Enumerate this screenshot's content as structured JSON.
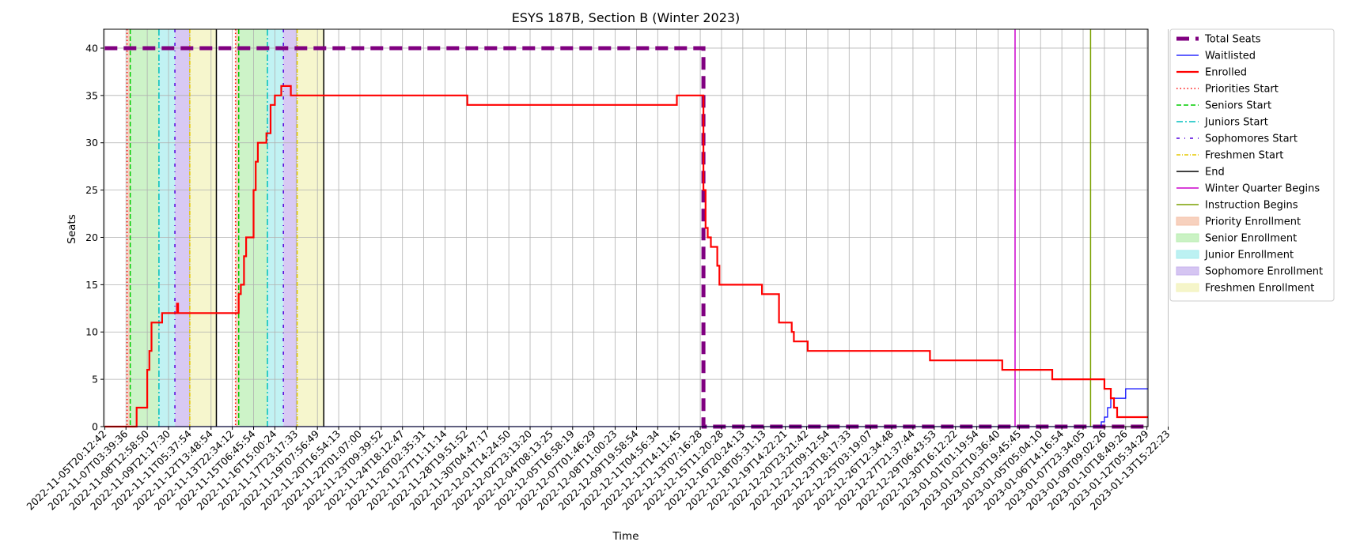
{
  "chart_data": {
    "type": "line",
    "title": "ESYS 187B, Section B (Winter 2023)",
    "xlabel": "Time",
    "ylabel": "Seats",
    "ylim": [
      0,
      42
    ],
    "yticks": [
      0,
      5,
      10,
      15,
      20,
      25,
      30,
      35,
      40
    ],
    "x_range_index": [
      -0.05,
      49.05
    ],
    "grid": true,
    "legend_placement": "outside-right",
    "x_tick_labels": [
      "2022-11-05T20:12:42",
      "2022-11-07T03:39:36",
      "2022-11-08T12:58:50",
      "2022-11-09T21:17:30",
      "2022-11-11T05:37:54",
      "2022-11-12T13:48:54",
      "2022-11-13T22:34:12",
      "2022-11-15T06:45:54",
      "2022-11-16T15:00:24",
      "2022-11-17T23:17:33",
      "2022-11-19T07:56:49",
      "2022-11-20T16:54:13",
      "2022-11-22T01:07:00",
      "2022-11-23T09:39:52",
      "2022-11-24T18:12:47",
      "2022-11-26T02:35:31",
      "2022-11-27T11:11:14",
      "2022-11-28T19:51:52",
      "2022-11-30T04:47:17",
      "2022-12-01T14:24:50",
      "2022-12-02T23:13:20",
      "2022-12-04T08:13:25",
      "2022-12-05T16:58:19",
      "2022-12-07T01:46:29",
      "2022-12-08T11:00:23",
      "2022-12-09T19:58:54",
      "2022-12-11T04:56:34",
      "2022-12-12T14:11:45",
      "2022-12-13T07:16:28",
      "2022-12-15T11:20:28",
      "2022-12-16T20:24:13",
      "2022-12-18T05:31:13",
      "2022-12-19T14:22:21",
      "2022-12-20T23:21:42",
      "2022-12-22T09:12:54",
      "2022-12-23T18:17:33",
      "2022-12-25T03:19:07",
      "2022-12-26T12:34:48",
      "2022-12-27T21:37:44",
      "2022-12-29T06:43:53",
      "2022-12-30T16:12:22",
      "2023-01-01T01:19:54",
      "2023-01-02T10:36:40",
      "2023-01-03T19:45:45",
      "2023-01-05T05:04:10",
      "2023-01-06T14:16:54",
      "2023-01-07T23:34:05",
      "2023-01-09T09:02:26",
      "2023-01-10T18:49:26",
      "2023-01-12T05:34:29",
      "2023-01-13T15:22:23"
    ],
    "series": [
      {
        "name": "Total Seats",
        "color": "#800080",
        "style": "dashed-thick",
        "points": [
          [
            0,
            40
          ],
          [
            28.15,
            40
          ],
          [
            28.15,
            0
          ],
          [
            49.05,
            0
          ]
        ]
      },
      {
        "name": "Waitlisted",
        "color": "#0000ff",
        "style": "solid-thin",
        "points": [
          [
            0,
            0
          ],
          [
            46.85,
            0
          ],
          [
            46.85,
            0.5
          ],
          [
            47.0,
            0.5
          ],
          [
            47.0,
            1
          ],
          [
            47.15,
            1
          ],
          [
            47.15,
            2
          ],
          [
            47.3,
            2
          ],
          [
            47.3,
            3
          ],
          [
            48.0,
            3
          ],
          [
            48.0,
            4
          ],
          [
            49.05,
            4
          ]
        ]
      },
      {
        "name": "Enrolled",
        "color": "#ff0000",
        "style": "solid-thick",
        "points": [
          [
            0,
            0
          ],
          [
            1.5,
            0
          ],
          [
            1.5,
            2
          ],
          [
            2.0,
            2
          ],
          [
            2.0,
            6
          ],
          [
            2.1,
            6
          ],
          [
            2.1,
            8
          ],
          [
            2.2,
            8
          ],
          [
            2.2,
            11
          ],
          [
            2.7,
            11
          ],
          [
            2.7,
            12
          ],
          [
            3.4,
            12
          ],
          [
            3.4,
            13
          ],
          [
            3.45,
            13
          ],
          [
            3.45,
            12
          ],
          [
            6.3,
            12
          ],
          [
            6.3,
            14
          ],
          [
            6.4,
            14
          ],
          [
            6.4,
            15
          ],
          [
            6.55,
            15
          ],
          [
            6.55,
            18
          ],
          [
            6.65,
            18
          ],
          [
            6.65,
            20
          ],
          [
            7.0,
            20
          ],
          [
            7.0,
            25
          ],
          [
            7.1,
            25
          ],
          [
            7.1,
            28
          ],
          [
            7.2,
            28
          ],
          [
            7.2,
            30
          ],
          [
            7.6,
            30
          ],
          [
            7.6,
            31
          ],
          [
            7.8,
            31
          ],
          [
            7.8,
            34
          ],
          [
            8.0,
            34
          ],
          [
            8.0,
            35
          ],
          [
            8.3,
            35
          ],
          [
            8.3,
            36
          ],
          [
            8.75,
            36
          ],
          [
            8.75,
            35
          ],
          [
            17.05,
            35
          ],
          [
            17.05,
            34
          ],
          [
            26.9,
            34
          ],
          [
            26.9,
            35
          ],
          [
            28.15,
            35
          ],
          [
            28.15,
            25
          ],
          [
            28.25,
            25
          ],
          [
            28.25,
            21
          ],
          [
            28.35,
            21
          ],
          [
            28.35,
            20
          ],
          [
            28.5,
            20
          ],
          [
            28.5,
            19
          ],
          [
            28.8,
            19
          ],
          [
            28.8,
            17
          ],
          [
            28.9,
            17
          ],
          [
            28.9,
            15
          ],
          [
            30.9,
            15
          ],
          [
            30.9,
            14
          ],
          [
            31.7,
            14
          ],
          [
            31.7,
            11
          ],
          [
            32.3,
            11
          ],
          [
            32.3,
            10
          ],
          [
            32.4,
            10
          ],
          [
            32.4,
            9
          ],
          [
            33.05,
            9
          ],
          [
            33.05,
            8
          ],
          [
            38.8,
            8
          ],
          [
            38.8,
            7
          ],
          [
            42.2,
            7
          ],
          [
            42.2,
            6
          ],
          [
            44.55,
            6
          ],
          [
            44.55,
            5
          ],
          [
            47.0,
            5
          ],
          [
            47.0,
            4
          ],
          [
            47.3,
            4
          ],
          [
            47.3,
            3
          ],
          [
            47.45,
            3
          ],
          [
            47.45,
            2
          ],
          [
            47.6,
            2
          ],
          [
            47.6,
            1
          ],
          [
            49.05,
            1
          ]
        ]
      }
    ],
    "vertical_markers": [
      {
        "name": "Priorities Start",
        "color": "#ff0000",
        "style": "dotted",
        "x": [
          1.05,
          6.15
        ]
      },
      {
        "name": "Seniors Start",
        "color": "#00cc00",
        "style": "dashed",
        "x": [
          1.2,
          6.3
        ]
      },
      {
        "name": "Juniors Start",
        "color": "#00bfbf",
        "style": "dashdot",
        "x": [
          2.55,
          7.65
        ]
      },
      {
        "name": "Sophomores Start",
        "color": "#5500dd",
        "style": "dashdot-sparse",
        "x": [
          3.3,
          8.4
        ]
      },
      {
        "name": "Freshmen Start",
        "color": "#e6c800",
        "style": "dashdot-fine",
        "x": [
          4.0,
          9.05
        ]
      },
      {
        "name": "End",
        "color": "#000000",
        "style": "solid",
        "x": [
          5.25,
          10.3
        ]
      },
      {
        "name": "Winter Quarter Begins",
        "color": "#cc00cc",
        "style": "solid",
        "x": [
          42.8
        ]
      },
      {
        "name": "Instruction Begins",
        "color": "#7aa000",
        "style": "solid",
        "x": [
          46.35
        ]
      }
    ],
    "shaded_regions": [
      {
        "name": "Priority Enrollment",
        "color": "#f4c1a8",
        "spans": [
          [
            1.05,
            1.2
          ],
          [
            6.15,
            6.3
          ]
        ]
      },
      {
        "name": "Senior Enrollment",
        "color": "#b8eeb0",
        "spans": [
          [
            1.2,
            2.55
          ],
          [
            6.3,
            7.65
          ]
        ]
      },
      {
        "name": "Junior Enrollment",
        "color": "#a6ecee",
        "spans": [
          [
            2.55,
            3.3
          ],
          [
            7.65,
            8.4
          ]
        ]
      },
      {
        "name": "Sophomore Enrollment",
        "color": "#c7b2ee",
        "spans": [
          [
            3.3,
            4.0
          ],
          [
            8.4,
            9.05
          ]
        ]
      },
      {
        "name": "Freshmen Enrollment",
        "color": "#f2f2b8",
        "spans": [
          [
            4.0,
            5.25
          ],
          [
            9.05,
            10.3
          ]
        ]
      }
    ],
    "legend": [
      {
        "label": "Total Seats",
        "kind": "line",
        "color": "#800080",
        "style": "dashed-thick"
      },
      {
        "label": "Waitlisted",
        "kind": "line",
        "color": "#0000ff",
        "style": "solid-thin"
      },
      {
        "label": "Enrolled",
        "kind": "line",
        "color": "#ff0000",
        "style": "solid-thick"
      },
      {
        "label": "Priorities Start",
        "kind": "line",
        "color": "#ff0000",
        "style": "dotted"
      },
      {
        "label": "Seniors Start",
        "kind": "line",
        "color": "#00cc00",
        "style": "dashed"
      },
      {
        "label": "Juniors Start",
        "kind": "line",
        "color": "#00bfbf",
        "style": "dashdot"
      },
      {
        "label": "Sophomores Start",
        "kind": "line",
        "color": "#5500dd",
        "style": "dashdot-sparse"
      },
      {
        "label": "Freshmen Start",
        "kind": "line",
        "color": "#e6c800",
        "style": "dashdot-fine"
      },
      {
        "label": "End",
        "kind": "line",
        "color": "#000000",
        "style": "solid"
      },
      {
        "label": "Winter Quarter Begins",
        "kind": "line",
        "color": "#cc00cc",
        "style": "solid"
      },
      {
        "label": "Instruction Begins",
        "kind": "line",
        "color": "#7aa000",
        "style": "solid"
      },
      {
        "label": "Priority Enrollment",
        "kind": "patch",
        "color": "#f4c1a8"
      },
      {
        "label": "Senior Enrollment",
        "kind": "patch",
        "color": "#b8eeb0"
      },
      {
        "label": "Junior Enrollment",
        "kind": "patch",
        "color": "#a6ecee"
      },
      {
        "label": "Sophomore Enrollment",
        "kind": "patch",
        "color": "#c7b2ee"
      },
      {
        "label": "Freshmen Enrollment",
        "kind": "patch",
        "color": "#f2f2b8"
      }
    ]
  }
}
